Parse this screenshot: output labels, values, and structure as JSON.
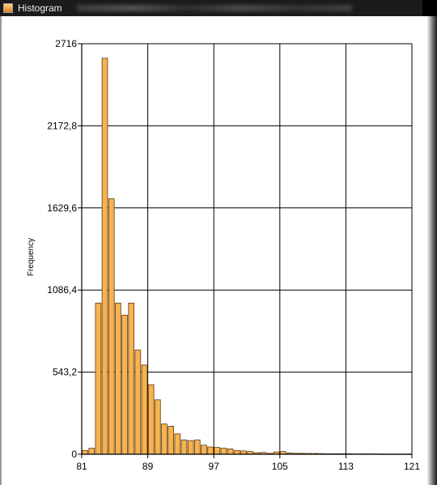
{
  "window": {
    "title": "Histogram",
    "icon": "chart-app-icon"
  },
  "chart_data": {
    "type": "bar",
    "title": "",
    "xlabel": "",
    "ylabel": "Frequency",
    "xlim": [
      81,
      121
    ],
    "ylim": [
      0,
      2716
    ],
    "xticks": [
      "81",
      "89",
      "97",
      "105",
      "113",
      "121"
    ],
    "yticks": [
      "0",
      "543,2",
      "1086,4",
      "1629,6",
      "2172,8",
      "2716"
    ],
    "grid": true,
    "bar_color": "#f7b251",
    "bar_edge_color": "#5a3a10",
    "x": [
      81.4,
      82.2,
      83.0,
      83.8,
      84.6,
      85.4,
      86.2,
      87.0,
      87.8,
      88.6,
      89.4,
      90.2,
      91.0,
      91.8,
      92.6,
      93.4,
      94.2,
      95.0,
      95.8,
      96.6,
      97.4,
      98.2,
      99.0,
      99.8,
      100.6,
      101.4,
      102.2,
      103.0,
      103.8,
      104.6,
      105.4,
      106.2,
      107.0,
      107.8,
      108.6,
      109.4,
      110.2,
      111.0,
      111.8,
      112.6,
      113.4,
      114.2,
      115.0,
      115.8,
      116.6,
      117.4,
      118.2,
      119.0,
      119.8,
      120.6
    ],
    "values": [
      25,
      40,
      1000,
      2620,
      1690,
      1000,
      920,
      1000,
      690,
      590,
      460,
      360,
      200,
      185,
      135,
      95,
      90,
      95,
      60,
      48,
      45,
      40,
      35,
      25,
      22,
      18,
      10,
      12,
      6,
      15,
      18,
      8,
      6,
      6,
      5,
      5,
      4,
      3,
      3,
      3,
      3,
      2,
      2,
      2,
      2,
      1,
      1,
      1,
      1,
      1
    ],
    "bin_width": 0.8
  }
}
